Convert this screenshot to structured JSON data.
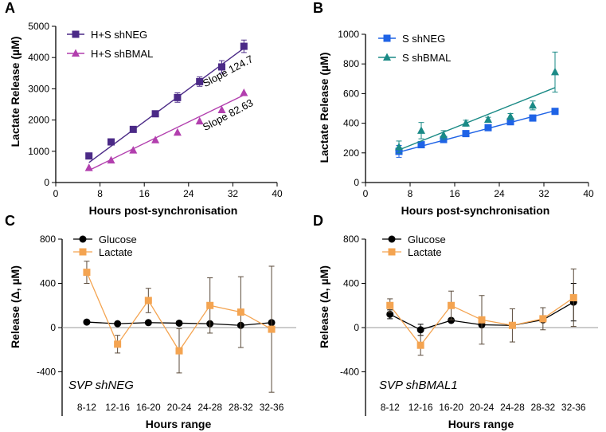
{
  "colors": {
    "hs_neg": "#4b2a87",
    "hs_bmal": "#b23fae",
    "s_neg": "#1f63e6",
    "s_bmal": "#1a8a86",
    "glucose": "#000000",
    "lactate": "#f4a451",
    "errbar_dark": "#5a4a3a"
  },
  "chart_data": [
    {
      "panel": "A",
      "type": "scatter",
      "xlabel": "Hours post-synchronisation",
      "ylabel": "Lactate Release (µM)",
      "xlim": [
        0,
        40
      ],
      "ylim": [
        0,
        5000
      ],
      "xticks": [
        "0",
        "8",
        "16",
        "24",
        "32",
        "40"
      ],
      "yticks": [
        "0",
        "1000",
        "2000",
        "3000",
        "4000",
        "5000"
      ],
      "legend": "top-left",
      "series": [
        {
          "name": "H+S shNEG",
          "marker": "square",
          "color_key": "hs_neg",
          "x": [
            6,
            10,
            14,
            18,
            22,
            26,
            30,
            34
          ],
          "y": [
            850,
            1300,
            1700,
            2200,
            2720,
            3230,
            3700,
            4360
          ],
          "err": [
            0,
            0,
            0,
            50,
            150,
            150,
            200,
            200
          ],
          "fit": [
            6,
            640,
            34,
            4300
          ]
        },
        {
          "name": "H+S shBMAL",
          "marker": "triangle",
          "color_key": "hs_bmal",
          "x": [
            6,
            10,
            14,
            18,
            22,
            26,
            30,
            34
          ],
          "y": [
            470,
            710,
            1030,
            1360,
            1600,
            1960,
            2320,
            2870
          ],
          "err": [
            0,
            0,
            0,
            0,
            0,
            0,
            0,
            0
          ],
          "fit": [
            6,
            390,
            34,
            2800
          ]
        }
      ],
      "annotations": [
        {
          "text": "Slope 124.7",
          "x": 27,
          "y": 3050
        },
        {
          "text": "Slope 82.63",
          "x": 27,
          "y": 1650
        }
      ]
    },
    {
      "panel": "B",
      "type": "scatter",
      "xlabel": "Hours post-synchronisation",
      "ylabel": "Lactate Release (µM)",
      "xlim": [
        0,
        40
      ],
      "ylim": [
        0,
        1000
      ],
      "xticks": [
        "0",
        "8",
        "16",
        "24",
        "32",
        "40"
      ],
      "yticks": [
        "0",
        "200",
        "400",
        "600",
        "800",
        "1000"
      ],
      "legend": "top-left",
      "series": [
        {
          "name": "S shNEG",
          "marker": "square",
          "color_key": "s_neg",
          "x": [
            6,
            10,
            14,
            18,
            22,
            26,
            30,
            34
          ],
          "y": [
            210,
            255,
            290,
            330,
            370,
            410,
            435,
            480
          ],
          "err": [
            40,
            15,
            15,
            15,
            15,
            15,
            15,
            10
          ],
          "fit": [
            6,
            205,
            34,
            485
          ]
        },
        {
          "name": "S shBMAL",
          "marker": "triangle",
          "color_key": "s_bmal",
          "x": [
            6,
            10,
            14,
            18,
            22,
            26,
            30,
            34
          ],
          "y": [
            240,
            350,
            320,
            400,
            425,
            445,
            520,
            745
          ],
          "err": [
            40,
            55,
            30,
            20,
            15,
            20,
            30,
            135
          ],
          "fit": [
            6,
            220,
            34,
            640
          ]
        }
      ],
      "annotations": []
    },
    {
      "panel": "C",
      "type": "line",
      "xlabel": "Hours range",
      "ylabel": "Release (Δ, µM)",
      "categories": [
        "8-12",
        "12-16",
        "16-20",
        "20-24",
        "24-28",
        "28-32",
        "32-36"
      ],
      "ylim": [
        -800,
        800
      ],
      "yticks": [
        "800",
        "400",
        "0",
        "-400"
      ],
      "legend": "top-left",
      "series": [
        {
          "name": "Glucose",
          "marker": "circle",
          "color_key": "glucose",
          "values": [
            50,
            35,
            45,
            40,
            35,
            20,
            45
          ],
          "err": [
            0,
            0,
            0,
            0,
            0,
            0,
            0
          ]
        },
        {
          "name": "Lactate",
          "marker": "square",
          "color_key": "lactate",
          "values": [
            500,
            -150,
            245,
            -210,
            200,
            140,
            -15
          ],
          "err": [
            100,
            80,
            110,
            200,
            250,
            320,
            570
          ]
        }
      ],
      "annotations": [
        {
          "text": "SVP shNEG",
          "italic": true
        }
      ]
    },
    {
      "panel": "D",
      "type": "line",
      "xlabel": "Hours range",
      "ylabel": "Release (Δ, µM)",
      "categories": [
        "8-12",
        "12-16",
        "16-20",
        "20-24",
        "24-28",
        "28-32",
        "32-36"
      ],
      "ylim": [
        -800,
        800
      ],
      "yticks": [
        "800",
        "400",
        "0",
        "-400"
      ],
      "legend": "top-left",
      "series": [
        {
          "name": "Glucose",
          "marker": "circle",
          "color_key": "glucose",
          "values": [
            120,
            -20,
            65,
            25,
            20,
            70,
            230
          ],
          "err": [
            40,
            50,
            0,
            0,
            0,
            0,
            170
          ]
        },
        {
          "name": "Lactate",
          "marker": "square",
          "color_key": "lactate",
          "values": [
            200,
            -160,
            200,
            70,
            20,
            80,
            270
          ],
          "err": [
            60,
            90,
            130,
            220,
            150,
            100,
            260
          ]
        }
      ],
      "annotations": [
        {
          "text": "SVP shBMAL1",
          "italic": true
        }
      ]
    }
  ]
}
